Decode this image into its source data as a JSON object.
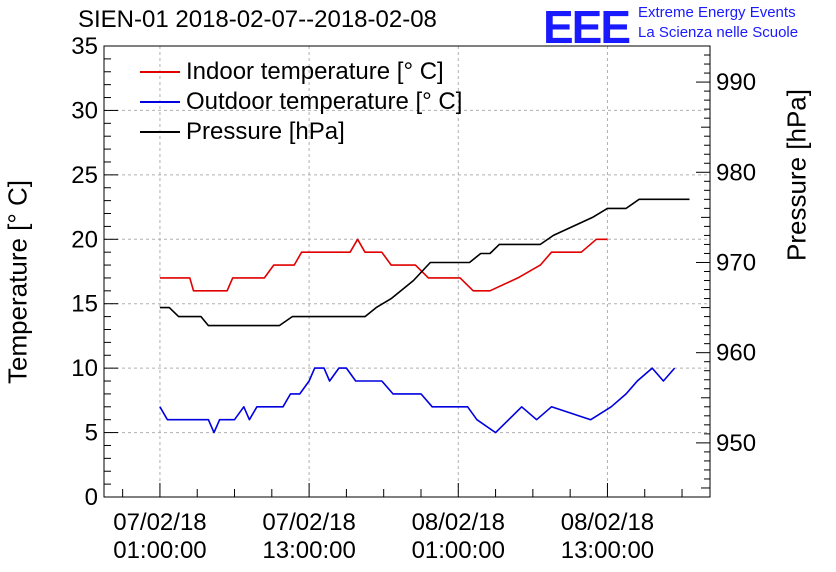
{
  "header": {
    "title": "SIEN-01 2018-02-07--2018-02-08",
    "logo_letters": "EEE",
    "logo_line1": "Extreme Energy Events",
    "logo_line2": "La Scienza nelle Scuole",
    "logo_color": "#1a1aff"
  },
  "chart_data": {
    "type": "line",
    "title": "SIEN-01 2018-02-07--2018-02-08",
    "xlabel": "",
    "ylabel": "Temperature [° C]",
    "y2label": "Pressure [hPa]",
    "xlim": [
      -1.5,
      14.75
    ],
    "ylim": [
      0,
      35
    ],
    "y2lim": [
      944,
      994
    ],
    "yticks": [
      0,
      5,
      10,
      15,
      20,
      25,
      30,
      35
    ],
    "y2ticks": [
      950,
      960,
      970,
      980,
      990
    ],
    "grid": true,
    "legend_position": "top-left",
    "x_ticks": [
      {
        "x": 0,
        "date": "07/02/18",
        "time": "01:00:00"
      },
      {
        "x": 4,
        "date": "07/02/18",
        "time": "13:00:00"
      },
      {
        "x": 8,
        "date": "08/02/18",
        "time": "01:00:00"
      },
      {
        "x": 12,
        "date": "08/02/18",
        "time": "13:00:00"
      }
    ],
    "series": [
      {
        "name": "Indoor temperature [° C]",
        "color": "#e00000",
        "axis": "left",
        "points": [
          [
            0,
            17
          ],
          [
            0.8,
            17
          ],
          [
            0.9,
            16
          ],
          [
            1.8,
            16
          ],
          [
            1.95,
            17
          ],
          [
            2.8,
            17
          ],
          [
            3.05,
            18
          ],
          [
            3.6,
            18
          ],
          [
            3.8,
            19
          ],
          [
            5.1,
            19
          ],
          [
            5.3,
            20
          ],
          [
            5.5,
            19
          ],
          [
            5.95,
            19
          ],
          [
            6.2,
            18
          ],
          [
            6.85,
            18
          ],
          [
            7.2,
            17
          ],
          [
            8.05,
            17
          ],
          [
            8.4,
            16
          ],
          [
            8.85,
            16
          ],
          [
            9.6,
            17
          ],
          [
            10.2,
            18
          ],
          [
            10.5,
            19
          ],
          [
            11.3,
            19
          ],
          [
            11.7,
            20
          ],
          [
            12,
            20
          ]
        ]
      },
      {
        "name": "Outdoor temperature [° C]",
        "color": "#0000e0",
        "axis": "left",
        "points": [
          [
            0,
            7
          ],
          [
            0.2,
            6
          ],
          [
            1.3,
            6
          ],
          [
            1.45,
            5
          ],
          [
            1.6,
            6
          ],
          [
            2,
            6
          ],
          [
            2.25,
            7
          ],
          [
            2.4,
            6
          ],
          [
            2.6,
            7
          ],
          [
            3.3,
            7
          ],
          [
            3.5,
            8
          ],
          [
            3.75,
            8
          ],
          [
            4,
            9
          ],
          [
            4.15,
            10
          ],
          [
            4.4,
            10
          ],
          [
            4.55,
            9
          ],
          [
            4.8,
            10
          ],
          [
            5,
            10
          ],
          [
            5.25,
            9
          ],
          [
            5.95,
            9
          ],
          [
            6.25,
            8
          ],
          [
            7.0,
            8
          ],
          [
            7.3,
            7
          ],
          [
            8.25,
            7
          ],
          [
            8.5,
            6
          ],
          [
            9.0,
            5
          ],
          [
            9.7,
            7
          ],
          [
            10.1,
            6
          ],
          [
            10.5,
            7
          ],
          [
            11.55,
            6
          ],
          [
            12.1,
            7
          ],
          [
            12.5,
            8
          ],
          [
            12.8,
            9
          ],
          [
            13.2,
            10
          ],
          [
            13.5,
            9
          ],
          [
            13.8,
            10
          ]
        ]
      },
      {
        "name": "Pressure [hPa]",
        "color": "#000000",
        "axis": "right",
        "points": [
          [
            0,
            965
          ],
          [
            0.25,
            965
          ],
          [
            0.5,
            964
          ],
          [
            1.1,
            964
          ],
          [
            1.3,
            963
          ],
          [
            3.2,
            963
          ],
          [
            3.55,
            964
          ],
          [
            5.5,
            964
          ],
          [
            5.8,
            965
          ],
          [
            6.2,
            966
          ],
          [
            6.8,
            968
          ],
          [
            7.25,
            970
          ],
          [
            8.3,
            970
          ],
          [
            8.6,
            971
          ],
          [
            8.85,
            971
          ],
          [
            9.1,
            972
          ],
          [
            10.2,
            972
          ],
          [
            10.55,
            973
          ],
          [
            11.6,
            975
          ],
          [
            12.0,
            976
          ],
          [
            12.5,
            976
          ],
          [
            12.85,
            977
          ],
          [
            14.2,
            977
          ]
        ]
      }
    ]
  },
  "legend": {
    "items": [
      {
        "label": "Indoor temperature [° C]",
        "color": "#e00000"
      },
      {
        "label": "Outdoor temperature [° C]",
        "color": "#0000e0"
      },
      {
        "label": "Pressure [hPa]",
        "color": "#000000"
      }
    ]
  },
  "axes": {
    "left_title": "Temperature [° C]",
    "right_title": "Pressure [hPa]"
  }
}
